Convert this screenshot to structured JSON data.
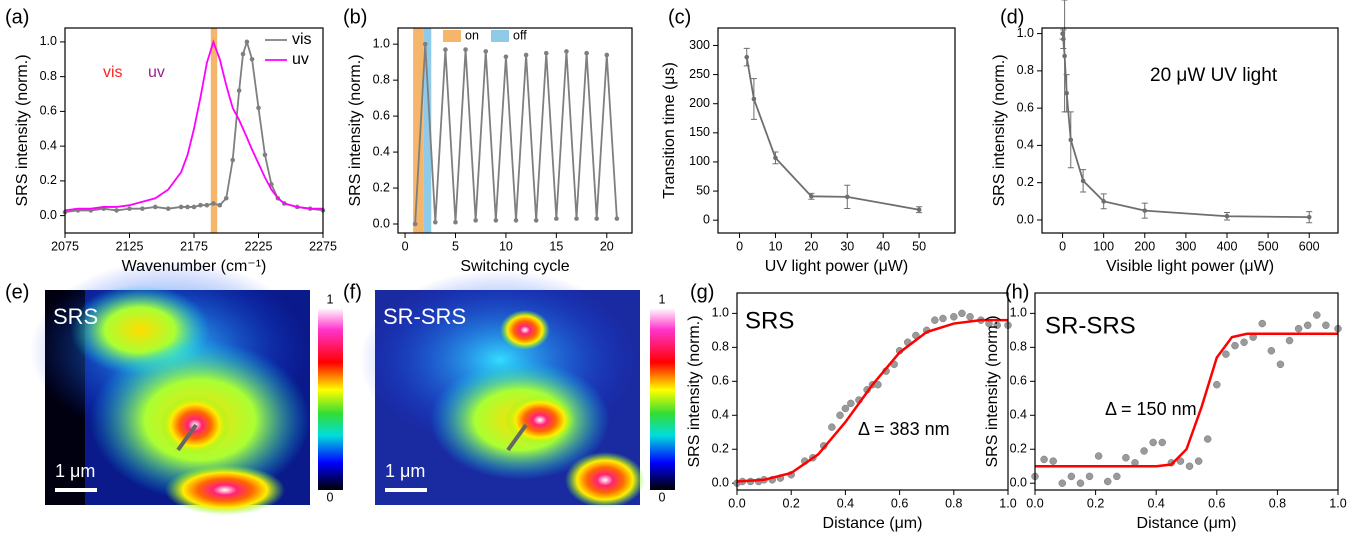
{
  "chart_data": [
    {
      "type": "line",
      "panel_label": "(a)",
      "x_label": "Wavenumber (cm⁻¹)",
      "y_label": "SRS intensity (norm.)",
      "xlim": [
        2075,
        2275
      ],
      "ylim": [
        -0.1,
        1.08
      ],
      "xticks": [
        2075,
        2125,
        2175,
        2225,
        2275
      ],
      "yticks": [
        {
          "value": 0,
          "label": "0.0"
        },
        0.2,
        0.4,
        0.6,
        0.8,
        {
          "value": 1,
          "label": "1.0"
        }
      ],
      "highlight": {
        "color": "#f5b56a",
        "range": [
          2188,
          2193
        ]
      },
      "annotations": [
        "vis",
        "uv"
      ],
      "series": [
        {
          "name": "vis",
          "color": "#7f7f7f",
          "mode": "lines+markers",
          "x": [
            2075,
            2085,
            2095,
            2105,
            2115,
            2125,
            2135,
            2145,
            2155,
            2165,
            2170,
            2175,
            2180,
            2185,
            2190,
            2195,
            2200,
            2205,
            2210,
            2213,
            2216,
            2220,
            2225,
            2230,
            2235,
            2240,
            2245,
            2255,
            2265,
            2275
          ],
          "values": [
            0.02,
            0.03,
            0.03,
            0.04,
            0.03,
            0.04,
            0.04,
            0.05,
            0.04,
            0.05,
            0.05,
            0.05,
            0.06,
            0.06,
            0.07,
            0.06,
            0.1,
            0.32,
            0.72,
            0.93,
            1.0,
            0.9,
            0.62,
            0.35,
            0.18,
            0.1,
            0.07,
            0.05,
            0.04,
            0.03
          ]
        },
        {
          "name": "uv",
          "color": "#ff00ff",
          "mode": "lines",
          "x": [
            2075,
            2085,
            2095,
            2105,
            2115,
            2125,
            2135,
            2145,
            2155,
            2165,
            2170,
            2175,
            2180,
            2185,
            2190,
            2195,
            2200,
            2205,
            2210,
            2213,
            2216,
            2220,
            2225,
            2230,
            2235,
            2240,
            2245,
            2255,
            2265,
            2275
          ],
          "values": [
            0.03,
            0.04,
            0.04,
            0.05,
            0.05,
            0.06,
            0.08,
            0.1,
            0.15,
            0.25,
            0.35,
            0.5,
            0.68,
            0.88,
            1.0,
            0.9,
            0.75,
            0.62,
            0.55,
            0.5,
            0.45,
            0.38,
            0.3,
            0.22,
            0.15,
            0.1,
            0.07,
            0.05,
            0.04,
            0.04
          ]
        }
      ]
    },
    {
      "type": "line",
      "panel_label": "(b)",
      "x_label": "Switching cycle",
      "y_label": "SRS intensity (norm.)",
      "xlim": [
        -0.7,
        22.5
      ],
      "ylim": [
        -0.05,
        1.09
      ],
      "xticks": [
        0,
        5,
        10,
        15,
        20
      ],
      "yticks": [
        {
          "value": 0,
          "label": "0.0"
        },
        0.2,
        0.4,
        0.6,
        0.8,
        {
          "value": 1,
          "label": "1.0"
        }
      ],
      "bands": [
        {
          "name": "on",
          "color": "#f5b56a",
          "range": [
            0.8,
            1.8
          ]
        },
        {
          "name": "off",
          "color": "#8fcbe8",
          "range": [
            1.8,
            2.6
          ]
        }
      ],
      "series": [
        {
          "color": "#7f7f7f",
          "mode": "lines+markers",
          "x": [
            1,
            2,
            3,
            4,
            5,
            6,
            7,
            8,
            9,
            10,
            11,
            12,
            13,
            14,
            15,
            16,
            17,
            18,
            19,
            20,
            21
          ],
          "values": [
            0.0,
            1.0,
            0.01,
            0.97,
            0.01,
            0.97,
            0.02,
            0.96,
            0.02,
            0.93,
            0.02,
            0.94,
            0.02,
            0.95,
            0.03,
            0.96,
            0.03,
            0.95,
            0.03,
            0.94,
            0.03
          ]
        }
      ]
    },
    {
      "type": "line",
      "panel_label": "(c)",
      "x_label": "UV light power (μW)",
      "y_label": "Transition time (μs)",
      "xlim": [
        -6,
        60
      ],
      "ylim": [
        -22,
        330
      ],
      "xticks": [
        0,
        10,
        20,
        30,
        40,
        50
      ],
      "yticks": [
        0,
        50,
        100,
        150,
        200,
        250,
        300
      ],
      "series": [
        {
          "color": "#6e6e6e",
          "mode": "lines+markers",
          "x": [
            2,
            4,
            10,
            20,
            30,
            50
          ],
          "values": [
            280,
            208,
            107,
            41,
            40,
            18
          ],
          "errors": [
            15,
            35,
            10,
            5,
            20,
            5
          ]
        }
      ]
    },
    {
      "type": "line",
      "panel_label": "(d)",
      "x_label": "Visible light power (μW)",
      "y_label": "SRS intensity (norm.)",
      "xlim": [
        -50,
        670
      ],
      "ylim": [
        -0.07,
        1.03
      ],
      "xticks": [
        0,
        100,
        200,
        300,
        400,
        500,
        600
      ],
      "yticks": [
        {
          "value": 0,
          "label": "0.0"
        },
        0.2,
        0.4,
        0.6,
        0.8,
        {
          "value": 1,
          "label": "1.0"
        }
      ],
      "annotations": [
        "20 μW UV light"
      ],
      "series": [
        {
          "color": "#6e6e6e",
          "mode": "lines+markers",
          "x": [
            0,
            2,
            5,
            10,
            20,
            50,
            100,
            200,
            400,
            600
          ],
          "values": [
            1.0,
            0.97,
            0.88,
            0.68,
            0.43,
            0.21,
            0.1,
            0.05,
            0.02,
            0.015
          ],
          "errors": [
            0.03,
            0.05,
            0.3,
            0.1,
            0.15,
            0.06,
            0.04,
            0.04,
            0.02,
            0.03
          ]
        }
      ]
    },
    {
      "type": "scatter",
      "panel_label": "(g)",
      "x_label": "Distance (μm)",
      "y_label": "SRS intensity (norm.)",
      "xlim": [
        0,
        1
      ],
      "ylim": [
        -0.04,
        1.12
      ],
      "xticks": [
        {
          "value": 0,
          "label": "0.0"
        },
        0.2,
        0.4,
        0.6,
        0.8,
        {
          "value": 1,
          "label": "1.0"
        }
      ],
      "yticks": [
        {
          "value": 0,
          "label": "0.0"
        },
        0.2,
        0.4,
        0.6,
        0.8,
        {
          "value": 1,
          "label": "1.0"
        }
      ],
      "annotations": [
        "SRS",
        "Δ = 383 nm"
      ],
      "series": [
        {
          "color": "#9a9a9a",
          "mode": "markers",
          "x": [
            0,
            0.02,
            0.05,
            0.08,
            0.1,
            0.13,
            0.16,
            0.2,
            0.25,
            0.28,
            0.32,
            0.35,
            0.38,
            0.4,
            0.42,
            0.45,
            0.48,
            0.5,
            0.52,
            0.55,
            0.58,
            0.6,
            0.63,
            0.66,
            0.7,
            0.73,
            0.76,
            0.8,
            0.83,
            0.86,
            0.9,
            0.93,
            0.96,
            1.0
          ],
          "values": [
            0.0,
            0.01,
            0.01,
            0.01,
            0.02,
            0.02,
            0.03,
            0.05,
            0.13,
            0.15,
            0.22,
            0.33,
            0.4,
            0.44,
            0.47,
            0.49,
            0.55,
            0.58,
            0.58,
            0.66,
            0.7,
            0.78,
            0.83,
            0.87,
            0.9,
            0.96,
            0.97,
            0.98,
            1.0,
            0.98,
            0.96,
            0.94,
            0.93,
            0.93
          ]
        },
        {
          "color": "#ff0000",
          "mode": "lines",
          "x": [
            0,
            0.1,
            0.2,
            0.3,
            0.4,
            0.5,
            0.6,
            0.7,
            0.8,
            0.9,
            1.0
          ],
          "values": [
            0.01,
            0.02,
            0.06,
            0.17,
            0.36,
            0.58,
            0.77,
            0.89,
            0.94,
            0.96,
            0.96
          ]
        }
      ]
    },
    {
      "type": "scatter",
      "panel_label": "(h)",
      "x_label": "Distance (μm)",
      "y_label": "SRS intensity (norm.)",
      "xlim": [
        0,
        1
      ],
      "ylim": [
        -0.04,
        1.12
      ],
      "xticks": [
        {
          "value": 0,
          "label": "0.0"
        },
        0.2,
        0.4,
        0.6,
        0.8,
        {
          "value": 1,
          "label": "1.0"
        }
      ],
      "yticks": [
        {
          "value": 0,
          "label": "0.0"
        },
        0.2,
        0.4,
        0.6,
        0.8,
        {
          "value": 1,
          "label": "1.0"
        }
      ],
      "annotations": [
        "SR-SRS",
        "Δ = 150 nm"
      ],
      "series": [
        {
          "color": "#9a9a9a",
          "mode": "markers",
          "x": [
            0,
            0.03,
            0.06,
            0.09,
            0.12,
            0.15,
            0.18,
            0.21,
            0.24,
            0.27,
            0.3,
            0.33,
            0.36,
            0.39,
            0.42,
            0.45,
            0.48,
            0.51,
            0.54,
            0.57,
            0.6,
            0.63,
            0.66,
            0.69,
            0.72,
            0.75,
            0.78,
            0.81,
            0.84,
            0.87,
            0.9,
            0.93,
            0.96,
            1.0
          ],
          "values": [
            0.04,
            0.14,
            0.13,
            0.0,
            0.04,
            0.0,
            0.04,
            0.16,
            0.01,
            0.04,
            0.15,
            0.12,
            0.19,
            0.24,
            0.24,
            0.12,
            0.13,
            0.1,
            0.13,
            0.26,
            0.58,
            0.76,
            0.81,
            0.83,
            0.86,
            0.94,
            0.78,
            0.7,
            0.84,
            0.91,
            0.93,
            0.99,
            0.93,
            0.91
          ]
        },
        {
          "color": "#ff0000",
          "mode": "lines",
          "x": [
            0,
            0.1,
            0.2,
            0.3,
            0.4,
            0.45,
            0.5,
            0.55,
            0.6,
            0.65,
            0.7,
            0.8,
            0.9,
            1.0
          ],
          "values": [
            0.1,
            0.1,
            0.1,
            0.1,
            0.1,
            0.11,
            0.2,
            0.45,
            0.74,
            0.86,
            0.88,
            0.88,
            0.88,
            0.88
          ]
        }
      ]
    }
  ],
  "images": [
    {
      "panel_label": "(e)",
      "title": "SRS",
      "scale_bar": "1 μm",
      "colorbar_ticks": [
        0,
        1
      ]
    },
    {
      "panel_label": "(f)",
      "title": "SR-SRS",
      "scale_bar": "1 μm",
      "colorbar_ticks": [
        0,
        1
      ]
    }
  ]
}
